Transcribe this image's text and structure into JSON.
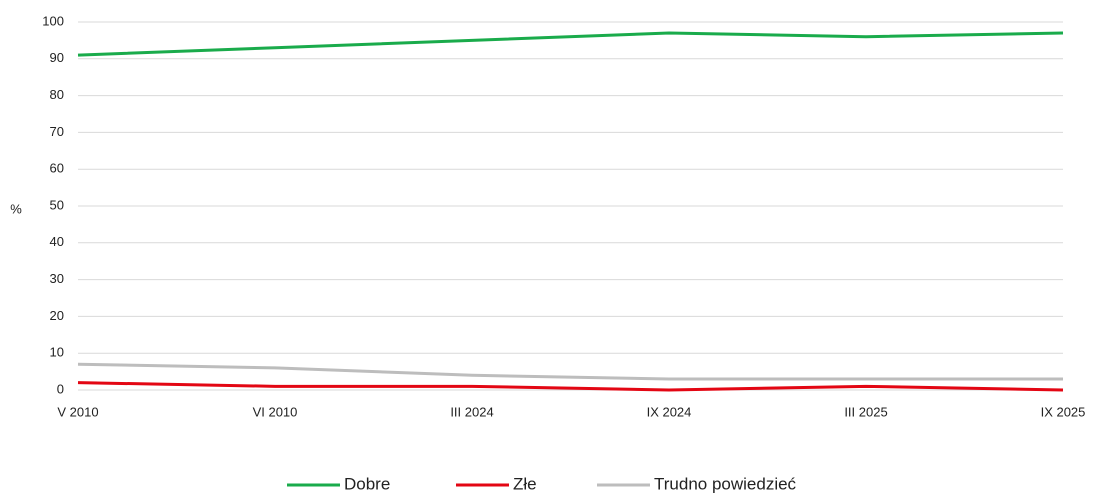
{
  "chart_data": {
    "type": "line",
    "y_label": "%",
    "categories": [
      "V 2010",
      "VI 2010",
      "III 2024",
      "IX 2024",
      "III 2025",
      "IX 2025"
    ],
    "series": [
      {
        "name": "Dobre",
        "color": "#1aab4b",
        "values": [
          91,
          93,
          95,
          97,
          96,
          97
        ]
      },
      {
        "name": "Złe",
        "color": "#e30613",
        "values": [
          2,
          1,
          1,
          0,
          1,
          0
        ]
      },
      {
        "name": "Trudno powiedzieć",
        "color": "#bdbdbd",
        "values": [
          7,
          6,
          4,
          3,
          3,
          3
        ]
      }
    ],
    "ylim": [
      0,
      100
    ],
    "yticks": [
      0,
      10,
      20,
      30,
      40,
      50,
      60,
      70,
      80,
      90,
      100
    ],
    "grid": true,
    "legend": "bottom"
  }
}
